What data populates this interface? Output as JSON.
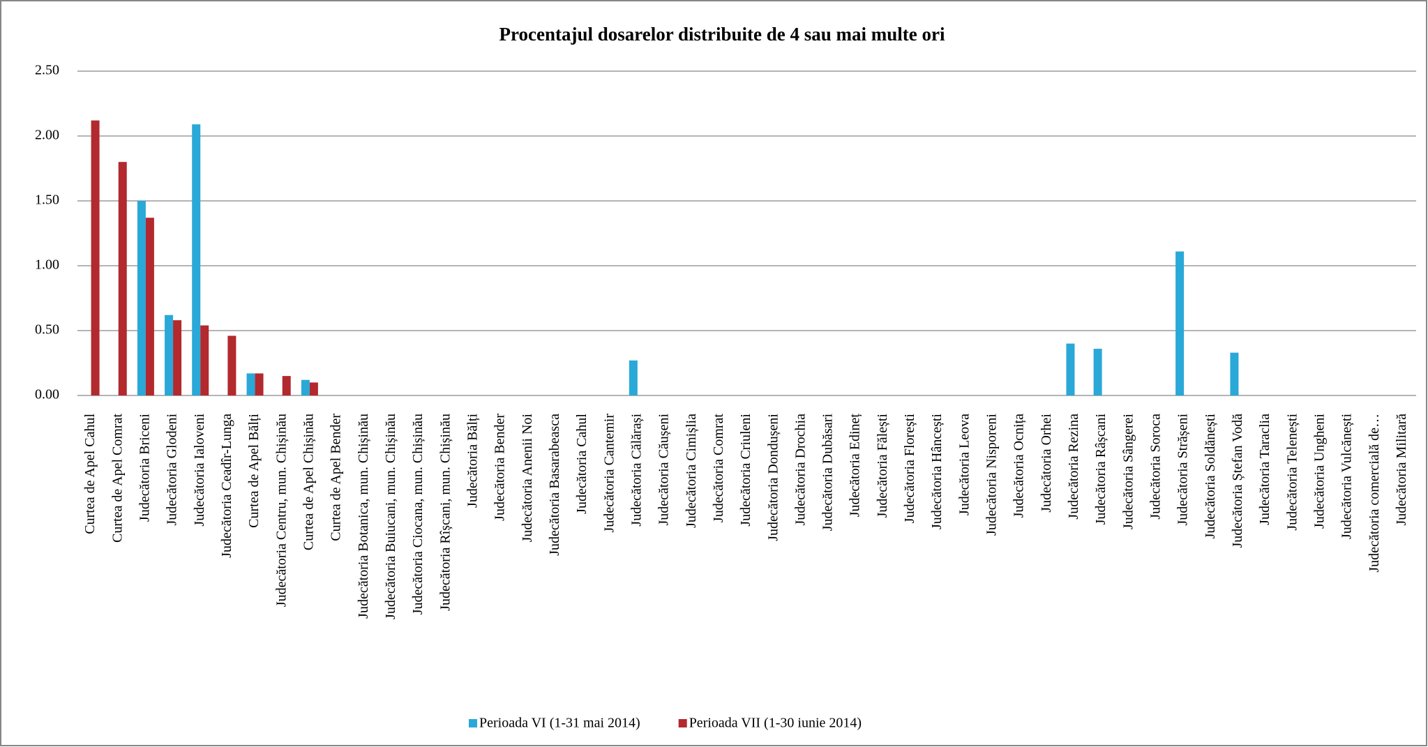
{
  "chart_data": {
    "type": "bar",
    "title": "Procentajul dosarelor distribuite de 4 sau mai multe ori",
    "categories": [
      "Curtea de Apel Cahul",
      "Curtea de Apel Comrat",
      "Judecătoria Briceni",
      "Judecătoria Glodeni",
      "Judecătoria Ialoveni",
      "Judecătoria Ceadîr-Lunga",
      "Curtea de Apel Bălți",
      "Judecătoria Centru, mun. Chișinău",
      "Curtea de Apel Chișinău",
      "Curtea de Apel Bender",
      "Judecătoria Botanica, mun. Chișinău",
      "Judecătoria Buiucani, mun. Chișinău",
      "Judecătoria Ciocana, mun. Chișinău",
      "Judecătoria Rîșcani, mun. Chișinău",
      "Judecătoria Bălți",
      "Judecătoria Bender",
      "Judecătoria Anenii Noi",
      "Judecătoria Basarabeasca",
      "Judecătoria Cahul",
      "Judecătoria Cantemir",
      "Judecătoria Călărași",
      "Judecătoria Căușeni",
      "Judecătoria Cimișlia",
      "Judecătoria Comrat",
      "Judecătoria Criuleni",
      "Judecătoria Dondușeni",
      "Judecătoria Drochia",
      "Judecătoria Dubăsari",
      "Judecătoria Edineț",
      "Judecătoria Fălești",
      "Judecătoria Florești",
      "Judecătoria Hâncești",
      "Judecătoria Leova",
      "Judecătoria Nisporeni",
      "Judecătoria Ocnița",
      "Judecătoria Orhei",
      "Judecătoria Rezina",
      "Judecătoria Râșcani",
      "Judecătoria Sângerei",
      "Judecătoria Soroca",
      "Judecătoria Strășeni",
      "Judecătoria Soldănești",
      "Judecătoria Ștefan Vodă",
      "Judecătoria Taraclia",
      "Judecătoria Telenești",
      "Judecătoria Ungheni",
      "Judecătoria Vulcănești",
      "Judecătoria comercială de…",
      "Judecătoria Militară"
    ],
    "series": [
      {
        "name": "Perioada VI (1-31 mai 2014)",
        "color": "#2aa8d8",
        "values": [
          0,
          0,
          1.5,
          0.62,
          2.09,
          0,
          0.17,
          0,
          0.12,
          0,
          0,
          0,
          0,
          0,
          0,
          0,
          0,
          0,
          0,
          0,
          0.27,
          0,
          0,
          0,
          0,
          0,
          0,
          0,
          0,
          0,
          0,
          0,
          0,
          0,
          0,
          0,
          0.4,
          0.36,
          0,
          0,
          1.11,
          0,
          0.33,
          0,
          0,
          0,
          0,
          0,
          0
        ]
      },
      {
        "name": "Perioada VII (1-30 iunie 2014)",
        "color": "#b2292e",
        "values": [
          2.12,
          1.8,
          1.37,
          0.58,
          0.54,
          0.46,
          0.17,
          0.15,
          0.1,
          0,
          0,
          0,
          0,
          0,
          0,
          0,
          0,
          0,
          0,
          0,
          0,
          0,
          0,
          0,
          0,
          0,
          0,
          0,
          0,
          0,
          0,
          0,
          0,
          0,
          0,
          0,
          0,
          0,
          0,
          0,
          0,
          0,
          0,
          0,
          0,
          0,
          0,
          0,
          0
        ]
      }
    ],
    "ylim": [
      0,
      2.5
    ],
    "yticks": [
      {
        "value": 0,
        "label": "0.00"
      },
      {
        "value": 0.5,
        "label": "0.50"
      },
      {
        "value": 1,
        "label": "1.00"
      },
      {
        "value": 1.5,
        "label": "1.50"
      },
      {
        "value": 2,
        "label": "2.00"
      },
      {
        "value": 2.5,
        "label": "2.50"
      }
    ],
    "grid": true,
    "legend": "bottom"
  }
}
